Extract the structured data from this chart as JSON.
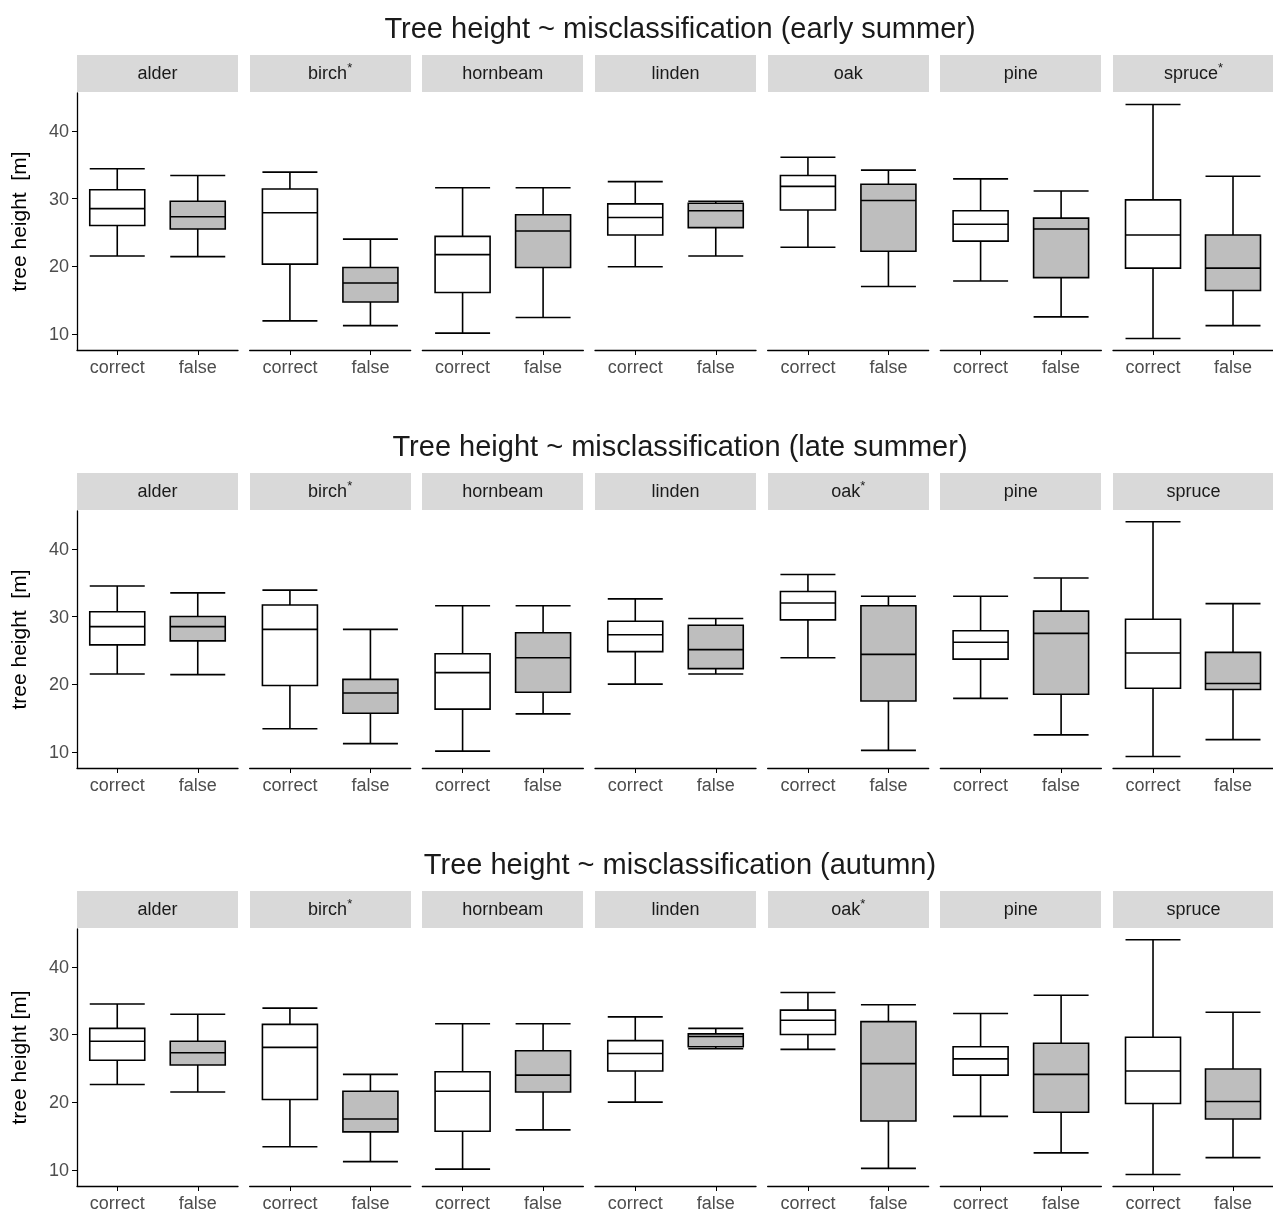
{
  "chart_data": [
    {
      "type": "box",
      "title": "Tree height ~ misclassification (early summer)",
      "ylabel": "tree height  [m]",
      "annotations": [
        "alder",
        "birch$^{*}$",
        "hornbeam",
        "linden",
        "oak",
        "pine",
        "spruce$^{*}$"
      ],
      "categories": [
        "correct",
        "false",
        "correct",
        "false",
        "correct",
        "false",
        "correct",
        "false",
        "correct",
        "false",
        "correct",
        "false",
        "correct",
        "false"
      ],
      "colors": [
        "#ffffff",
        "#bebebe",
        "#ffffff",
        "#bebebe",
        "#ffffff",
        "#bebebe",
        "#ffffff",
        "#bebebe",
        "#ffffff",
        "#bebebe",
        "#ffffff",
        "#bebebe",
        "#ffffff",
        "#bebebe"
      ],
      "ylim": [
        7.6,
        45.6
      ],
      "yticks": [
        10,
        20,
        30,
        40
      ],
      "boxes": [
        {
          "low": 21.5,
          "q1": 26.0,
          "median": 28.5,
          "q3": 31.3,
          "high": 34.4
        },
        {
          "low": 21.4,
          "q1": 25.5,
          "median": 27.3,
          "q3": 29.6,
          "high": 33.4
        },
        {
          "low": 11.9,
          "q1": 20.3,
          "median": 27.9,
          "q3": 31.4,
          "high": 33.9
        },
        {
          "low": 11.2,
          "q1": 14.7,
          "median": 17.5,
          "q3": 19.8,
          "high": 24.0
        },
        {
          "low": 10.1,
          "q1": 16.1,
          "median": 21.7,
          "q3": 24.4,
          "high": 31.6
        },
        {
          "low": 12.4,
          "q1": 19.8,
          "median": 25.2,
          "q3": 27.6,
          "high": 31.6
        },
        {
          "low": 19.9,
          "q1": 24.6,
          "median": 27.2,
          "q3": 29.2,
          "high": 32.5
        },
        {
          "low": 21.5,
          "q1": 25.7,
          "median": 28.2,
          "q3": 29.3,
          "high": 29.6
        },
        {
          "low": 22.8,
          "q1": 28.3,
          "median": 31.8,
          "q3": 33.4,
          "high": 36.1
        },
        {
          "low": 17.0,
          "q1": 22.2,
          "median": 29.7,
          "q3": 32.1,
          "high": 34.2
        },
        {
          "low": 17.8,
          "q1": 23.7,
          "median": 26.2,
          "q3": 28.2,
          "high": 32.9
        },
        {
          "low": 12.5,
          "q1": 18.3,
          "median": 25.5,
          "q3": 27.1,
          "high": 31.1
        },
        {
          "low": 9.3,
          "q1": 19.7,
          "median": 24.6,
          "q3": 29.8,
          "high": 43.9
        },
        {
          "low": 11.2,
          "q1": 16.4,
          "median": 19.7,
          "q3": 24.6,
          "high": 33.3
        }
      ]
    },
    {
      "type": "box",
      "title": "Tree height ~ misclassification (late summer)",
      "ylabel": "tree height  [m]",
      "annotations": [
        "alder",
        "birch$^{*}$",
        "hornbeam",
        "linden",
        "oak$^{*}$",
        "pine",
        "spruce"
      ],
      "categories": [
        "correct",
        "false",
        "correct",
        "false",
        "correct",
        "false",
        "correct",
        "false",
        "correct",
        "false",
        "correct",
        "false",
        "correct",
        "false"
      ],
      "colors": [
        "#ffffff",
        "#bebebe",
        "#ffffff",
        "#bebebe",
        "#ffffff",
        "#bebebe",
        "#ffffff",
        "#bebebe",
        "#ffffff",
        "#bebebe",
        "#ffffff",
        "#bebebe",
        "#ffffff",
        "#bebebe"
      ],
      "ylim": [
        7.6,
        45.6
      ],
      "yticks": [
        10,
        20,
        30,
        40
      ],
      "boxes": [
        {
          "low": 21.5,
          "q1": 25.8,
          "median": 28.5,
          "q3": 30.7,
          "high": 34.5
        },
        {
          "low": 21.4,
          "q1": 26.4,
          "median": 28.5,
          "q3": 30.0,
          "high": 33.5
        },
        {
          "low": 13.4,
          "q1": 19.8,
          "median": 28.1,
          "q3": 31.7,
          "high": 33.9
        },
        {
          "low": 11.2,
          "q1": 15.7,
          "median": 18.7,
          "q3": 20.7,
          "high": 28.1
        },
        {
          "low": 10.1,
          "q1": 16.3,
          "median": 21.7,
          "q3": 24.5,
          "high": 31.6
        },
        {
          "low": 15.6,
          "q1": 18.8,
          "median": 23.9,
          "q3": 27.6,
          "high": 31.6
        },
        {
          "low": 20.0,
          "q1": 24.8,
          "median": 27.3,
          "q3": 29.3,
          "high": 32.6
        },
        {
          "low": 21.5,
          "q1": 22.3,
          "median": 25.1,
          "q3": 28.7,
          "high": 29.7
        },
        {
          "low": 23.9,
          "q1": 29.5,
          "median": 32.0,
          "q3": 33.7,
          "high": 36.2
        },
        {
          "low": 10.2,
          "q1": 17.5,
          "median": 24.4,
          "q3": 31.6,
          "high": 33.0
        },
        {
          "low": 17.9,
          "q1": 23.7,
          "median": 26.2,
          "q3": 27.9,
          "high": 33.0
        },
        {
          "low": 12.5,
          "q1": 18.5,
          "median": 27.5,
          "q3": 30.8,
          "high": 35.7
        },
        {
          "low": 9.3,
          "q1": 19.4,
          "median": 24.6,
          "q3": 29.6,
          "high": 44.0
        },
        {
          "low": 11.8,
          "q1": 19.2,
          "median": 20.1,
          "q3": 24.7,
          "high": 31.9
        }
      ]
    },
    {
      "type": "box",
      "title": "Tree height ~ misclassification (autumn)",
      "ylabel": "tree height [m]",
      "annotations": [
        "alder",
        "birch$^{*}$",
        "hornbeam",
        "linden",
        "oak$^{*}$",
        "pine",
        "spruce"
      ],
      "categories": [
        "correct",
        "false",
        "correct",
        "false",
        "correct",
        "false",
        "correct",
        "false",
        "correct",
        "false",
        "correct",
        "false",
        "correct",
        "false"
      ],
      "colors": [
        "#ffffff",
        "#bebebe",
        "#ffffff",
        "#bebebe",
        "#ffffff",
        "#bebebe",
        "#ffffff",
        "#bebebe",
        "#ffffff",
        "#bebebe",
        "#ffffff",
        "#bebebe",
        "#ffffff",
        "#bebebe"
      ],
      "ylim": [
        7.6,
        45.6
      ],
      "yticks": [
        10,
        20,
        30,
        40
      ],
      "boxes": [
        {
          "low": 22.6,
          "q1": 26.2,
          "median": 29.0,
          "q3": 30.9,
          "high": 34.5
        },
        {
          "low": 21.5,
          "q1": 25.5,
          "median": 27.3,
          "q3": 29.0,
          "high": 33.0
        },
        {
          "low": 13.4,
          "q1": 20.4,
          "median": 28.1,
          "q3": 31.5,
          "high": 33.9
        },
        {
          "low": 11.2,
          "q1": 15.6,
          "median": 17.5,
          "q3": 21.6,
          "high": 24.1
        },
        {
          "low": 10.1,
          "q1": 15.7,
          "median": 21.6,
          "q3": 24.5,
          "high": 31.6
        },
        {
          "low": 15.9,
          "q1": 21.5,
          "median": 24.0,
          "q3": 27.6,
          "high": 31.6
        },
        {
          "low": 20.0,
          "q1": 24.6,
          "median": 27.2,
          "q3": 29.1,
          "high": 32.6
        },
        {
          "low": 27.9,
          "q1": 28.2,
          "median": 29.7,
          "q3": 30.1,
          "high": 30.9
        },
        {
          "low": 27.8,
          "q1": 30.0,
          "median": 32.1,
          "q3": 33.6,
          "high": 36.2
        },
        {
          "low": 10.2,
          "q1": 17.2,
          "median": 25.7,
          "q3": 31.9,
          "high": 34.4
        },
        {
          "low": 17.9,
          "q1": 24.0,
          "median": 26.4,
          "q3": 28.2,
          "high": 33.1
        },
        {
          "low": 12.5,
          "q1": 18.5,
          "median": 24.1,
          "q3": 28.7,
          "high": 35.8
        },
        {
          "low": 9.3,
          "q1": 19.8,
          "median": 24.6,
          "q3": 29.6,
          "high": 44.0
        },
        {
          "low": 11.8,
          "q1": 17.5,
          "median": 20.1,
          "q3": 24.9,
          "high": 33.3
        }
      ]
    }
  ]
}
